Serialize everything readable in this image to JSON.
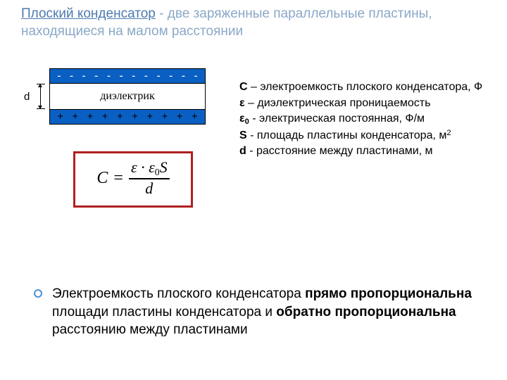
{
  "title": {
    "term": "Плоский конденсатор",
    "dash": " - ",
    "rest": "две заряженные параллельные пластины, находящиеся на малом расстоянии",
    "term_color": "#4d7ab0",
    "rest_color": "#8aa8c8"
  },
  "diagram": {
    "top_plate_charges": [
      "-",
      "-",
      "-",
      "-",
      "-",
      "-",
      "-",
      "-",
      "-",
      "-",
      "-",
      "-"
    ],
    "bottom_plate_charges": [
      "+",
      "+",
      "+",
      "+",
      "+",
      "+",
      "+",
      "+",
      "+",
      "+"
    ],
    "dielectric_label": "диэлектрик",
    "gap_symbol": "d",
    "plate_color": "#0a5fc2",
    "border_color": "#000000",
    "background_color": "#ffffff"
  },
  "formula": {
    "lhs": "C",
    "eq": "=",
    "num_eps": "ε",
    "num_dot": "·",
    "num_eps0": "ε",
    "num_sub0": "0",
    "num_S": "S",
    "den": "d",
    "border_color": "#b02020"
  },
  "defs": {
    "c_sym": "C",
    "c_txt": " – электроемкость плоского конденсатора, Ф",
    "eps_sym": "ε",
    "eps_txt": " – диэлектрическая проницаемость",
    "eps0_sym": "ε",
    "eps0_sub": "0",
    "eps0_txt": " - электрическая постоянная, Ф/м",
    "s_sym": "S",
    "s_txt": " - площадь пластины конденсатора, м",
    "s_sup": "2",
    "d_sym": "d",
    "d_txt": "   - расстояние между пластинами, м"
  },
  "bullet": {
    "p1": "Электроемкость плоского конденсатора ",
    "b1": "прямо пропорциональна",
    "p2": " площади пластины конденсатора и ",
    "b2": "обратно пропорциональна",
    "p3": " расстоянию между пластинами",
    "dot_color": "#4d8fd6"
  }
}
